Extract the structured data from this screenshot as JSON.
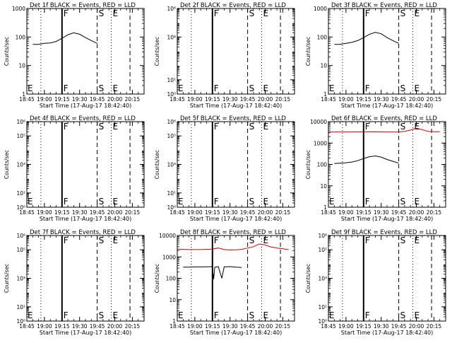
{
  "xaxis": {
    "label": "Start Time (17-Aug-17 18:42:40)",
    "ticks": [
      "18:45",
      "19:00",
      "19:15",
      "19:30",
      "19:45",
      "20:00",
      "20:15"
    ],
    "tick_minutes": [
      0,
      15,
      30,
      45,
      60,
      75,
      90
    ],
    "range_minutes": [
      0,
      100
    ]
  },
  "ylabel": "Counts/sec",
  "markers": {
    "lines": [
      {
        "at": 12,
        "style": "dotted"
      },
      {
        "at": 30,
        "style": "solid",
        "label": "F"
      },
      {
        "at": 60,
        "style": "dashed",
        "label": "S"
      },
      {
        "at": 72,
        "style": "dotted",
        "label": "E"
      },
      {
        "at": 88,
        "style": "dashed"
      }
    ],
    "left_label": "E"
  },
  "chart_data": [
    {
      "type": "line",
      "title": "Det 1f BLACK = Events, RED = LLD",
      "yscale": "log",
      "ylim": [
        1,
        1000
      ],
      "yticks": [
        {
          "v": 1,
          "label": "1"
        },
        {
          "v": 10,
          "label": "10"
        },
        {
          "v": 100,
          "label": "100"
        },
        {
          "v": 1000,
          "label": "1000"
        }
      ],
      "series": [
        {
          "color": "#000000",
          "x": [
            5,
            10,
            15,
            20,
            25,
            30,
            35,
            40,
            45,
            50,
            55,
            60
          ],
          "y": [
            55,
            55,
            60,
            62,
            70,
            90,
            120,
            140,
            125,
            95,
            75,
            60
          ]
        }
      ],
      "markers": true
    },
    {
      "type": "line",
      "title": "Det 2f BLACK = Events, RED = LLD",
      "yscale": "log",
      "ylim": [
        1,
        1000000
      ],
      "yticks": [
        {
          "v": 1,
          "label": "10⁰"
        },
        {
          "v": 10,
          "label": "10¹"
        },
        {
          "v": 10000,
          "label": "10⁴"
        },
        {
          "v": 1000000,
          "label": "10⁶"
        }
      ],
      "series": [],
      "markers": true
    },
    {
      "type": "line",
      "title": "Det 3f BLACK = Events, RED = LLD",
      "yscale": "log",
      "ylim": [
        1,
        1000
      ],
      "yticks": [
        {
          "v": 1,
          "label": "1"
        },
        {
          "v": 10,
          "label": "10"
        },
        {
          "v": 100,
          "label": "100"
        },
        {
          "v": 1000,
          "label": "1000"
        }
      ],
      "series": [
        {
          "color": "#000000",
          "x": [
            5,
            10,
            15,
            20,
            25,
            30,
            35,
            40,
            45,
            50,
            55,
            60
          ],
          "y": [
            55,
            55,
            60,
            65,
            75,
            95,
            125,
            145,
            130,
            95,
            75,
            60
          ]
        }
      ],
      "markers": true
    },
    {
      "type": "line",
      "title": "Det 4f BLACK = Events, RED = LLD",
      "yscale": "log",
      "ylim": [
        1,
        1000000
      ],
      "yticks": [
        {
          "v": 1,
          "label": "10⁰"
        },
        {
          "v": 10,
          "label": "10¹"
        },
        {
          "v": 1000,
          "label": "10³"
        },
        {
          "v": 100000,
          "label": "10⁵"
        },
        {
          "v": 1000000,
          "label": "10⁶"
        }
      ],
      "series": [],
      "markers": true
    },
    {
      "type": "line",
      "title": "Det 5f BLACK = Events, RED = LLD",
      "yscale": "log",
      "ylim": [
        1,
        1000000
      ],
      "yticks": [
        {
          "v": 1,
          "label": "10⁰"
        },
        {
          "v": 10,
          "label": "10¹"
        },
        {
          "v": 1000,
          "label": "10³"
        },
        {
          "v": 100000,
          "label": "10⁵"
        },
        {
          "v": 1000000,
          "label": "10⁶"
        }
      ],
      "series": [],
      "markers": true
    },
    {
      "type": "line",
      "title": "Det 6f BLACK = Events, RED = LLD",
      "yscale": "log",
      "ylim": [
        1,
        10000
      ],
      "yticks": [
        {
          "v": 1,
          "label": "1"
        },
        {
          "v": 10,
          "label": "10"
        },
        {
          "v": 100,
          "label": "100"
        },
        {
          "v": 1000,
          "label": "1000"
        },
        {
          "v": 10000,
          "label": "10000"
        }
      ],
      "series": [
        {
          "color": "#000000",
          "x": [
            5,
            10,
            15,
            20,
            25,
            30,
            35,
            40,
            45,
            50,
            55,
            60
          ],
          "y": [
            110,
            115,
            120,
            130,
            150,
            190,
            230,
            250,
            220,
            170,
            140,
            115
          ]
        },
        {
          "color": "#d40000",
          "x": [
            0,
            10,
            20,
            30,
            40,
            50,
            60,
            65,
            70,
            75,
            80,
            85,
            90,
            95
          ],
          "y": [
            3300,
            3300,
            3300,
            3350,
            3400,
            3300,
            3300,
            3500,
            4000,
            5000,
            4200,
            3500,
            3400,
            3400
          ]
        }
      ],
      "markers": true
    },
    {
      "type": "line",
      "title": "Det 7f BLACK = Events, RED = LLD",
      "yscale": "log",
      "ylim": [
        1,
        1000000
      ],
      "yticks": [
        {
          "v": 1,
          "label": "10⁰"
        },
        {
          "v": 10,
          "label": "10¹"
        },
        {
          "v": 1000,
          "label": "10³"
        },
        {
          "v": 100000,
          "label": "10⁵"
        },
        {
          "v": 1000000,
          "label": "10⁶"
        }
      ],
      "series": [],
      "markers": true
    },
    {
      "type": "line",
      "title": "Det 8f BLACK = Events, RED = LLD",
      "yscale": "log",
      "ylim": [
        1,
        10000
      ],
      "yticks": [
        {
          "v": 1,
          "label": "1"
        },
        {
          "v": 10,
          "label": "10"
        },
        {
          "v": 100,
          "label": "100"
        },
        {
          "v": 1000,
          "label": "1000"
        },
        {
          "v": 10000,
          "label": "10000"
        }
      ],
      "series": [
        {
          "color": "#000000",
          "x": [
            5,
            10,
            15,
            20,
            25,
            30,
            31,
            32,
            35,
            38,
            40,
            45,
            50,
            55
          ],
          "y": [
            330,
            330,
            340,
            340,
            345,
            350,
            90,
            330,
            350,
            100,
            340,
            350,
            330,
            320
          ]
        },
        {
          "color": "#d40000",
          "x": [
            0,
            10,
            20,
            30,
            35,
            40,
            45,
            50,
            55,
            60,
            65,
            70,
            75,
            80,
            85,
            90,
            95
          ],
          "y": [
            2300,
            2200,
            2200,
            2300,
            2600,
            2200,
            2100,
            2150,
            2250,
            2600,
            3000,
            4000,
            3600,
            2900,
            2600,
            2400,
            2200
          ]
        }
      ],
      "markers": true
    },
    {
      "type": "line",
      "title": "Det 9f BLACK = Events, RED = LLD",
      "yscale": "log",
      "ylim": [
        1,
        1000000
      ],
      "yticks": [
        {
          "v": 1,
          "label": "10⁰"
        },
        {
          "v": 10,
          "label": "10¹"
        },
        {
          "v": 1000,
          "label": "10³"
        },
        {
          "v": 100000,
          "label": "10⁵"
        },
        {
          "v": 1000000,
          "label": "10⁶"
        }
      ],
      "series": [],
      "markers": true
    }
  ]
}
